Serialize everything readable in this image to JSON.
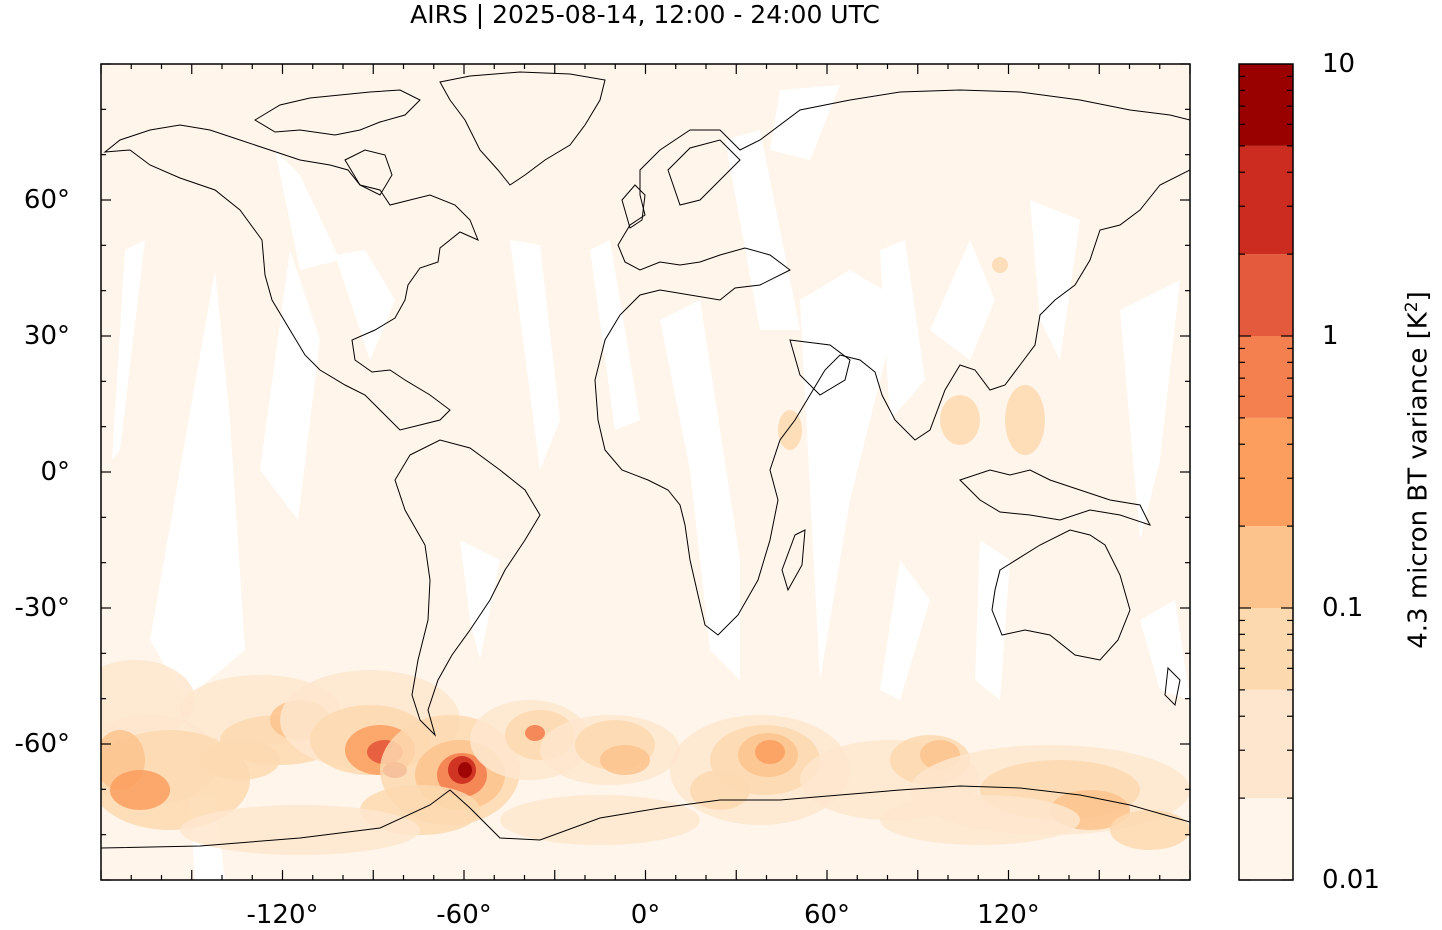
{
  "map": {
    "title": "AIRS | 2025-08-14, 12:00 - 24:00 UTC",
    "lon_range": [
      -180,
      180
    ],
    "lat_range": [
      -90,
      90
    ],
    "lat_ticks": [
      {
        "value": 60,
        "label": "60°"
      },
      {
        "value": 30,
        "label": "30°"
      },
      {
        "value": 0,
        "label": "0°"
      },
      {
        "value": -30,
        "label": "-30°"
      },
      {
        "value": -60,
        "label": "-60°"
      }
    ],
    "lon_ticks": [
      {
        "value": -120,
        "label": "-120°"
      },
      {
        "value": -60,
        "label": "-60°"
      },
      {
        "value": 0,
        "label": "0°"
      },
      {
        "value": 60,
        "label": "60°"
      },
      {
        "value": 120,
        "label": "120°"
      }
    ],
    "background_color": "#fff5eb",
    "gap_color": "#ffffff"
  },
  "colorbar": {
    "label_main": "4.3 micron BT variance [K",
    "label_sup": "2",
    "label_end": "]",
    "scale": "log",
    "ticks": [
      {
        "value": 10,
        "label": "10"
      },
      {
        "value": 1,
        "label": "1"
      },
      {
        "value": 0.1,
        "label": "0.1"
      },
      {
        "value": 0.01,
        "label": "0.01"
      }
    ],
    "bins": [
      {
        "from": 0.01,
        "to": 0.02,
        "color": "#fff5eb"
      },
      {
        "from": 0.02,
        "to": 0.05,
        "color": "#fee6ce"
      },
      {
        "from": 0.05,
        "to": 0.1,
        "color": "#fdd9b0"
      },
      {
        "from": 0.1,
        "to": 0.2,
        "color": "#fdc38d"
      },
      {
        "from": 0.2,
        "to": 0.5,
        "color": "#fc9e5e"
      },
      {
        "from": 0.5,
        "to": 1,
        "color": "#f47f4f"
      },
      {
        "from": 1,
        "to": 2,
        "color": "#e45a3c"
      },
      {
        "from": 2,
        "to": 5,
        "color": "#cc2c1f"
      },
      {
        "from": 5,
        "to": 10,
        "color": "#990000"
      }
    ]
  }
}
